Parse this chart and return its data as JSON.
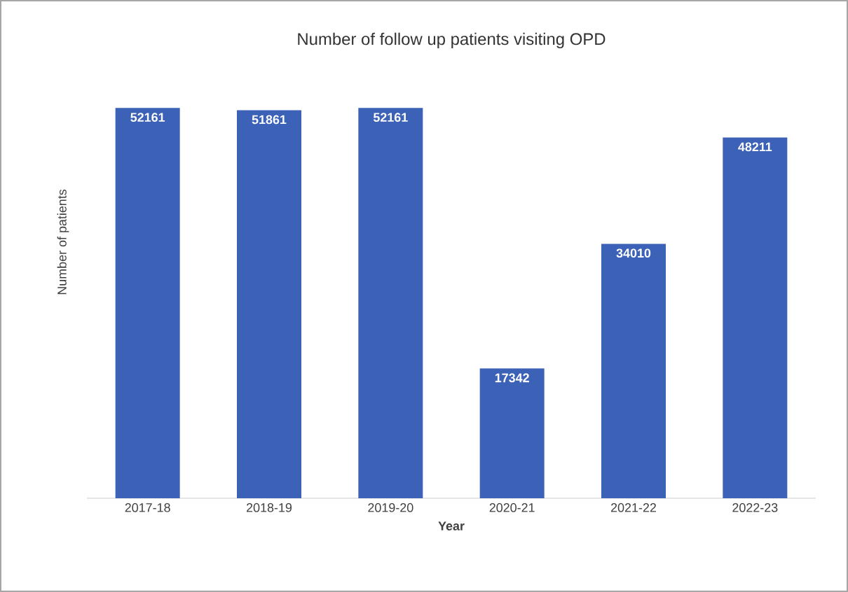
{
  "chart_data": {
    "type": "bar",
    "title": "Number of follow up patients visiting OPD",
    "xlabel": "Year",
    "ylabel": "Number of patients",
    "categories": [
      "2017-18",
      "2018-19",
      "2019-20",
      "2020-21",
      "2021-22",
      "2022-23"
    ],
    "values": [
      52161,
      51861,
      52161,
      17342,
      34010,
      48211
    ],
    "color": "#3c62b8",
    "data_labels": true
  }
}
